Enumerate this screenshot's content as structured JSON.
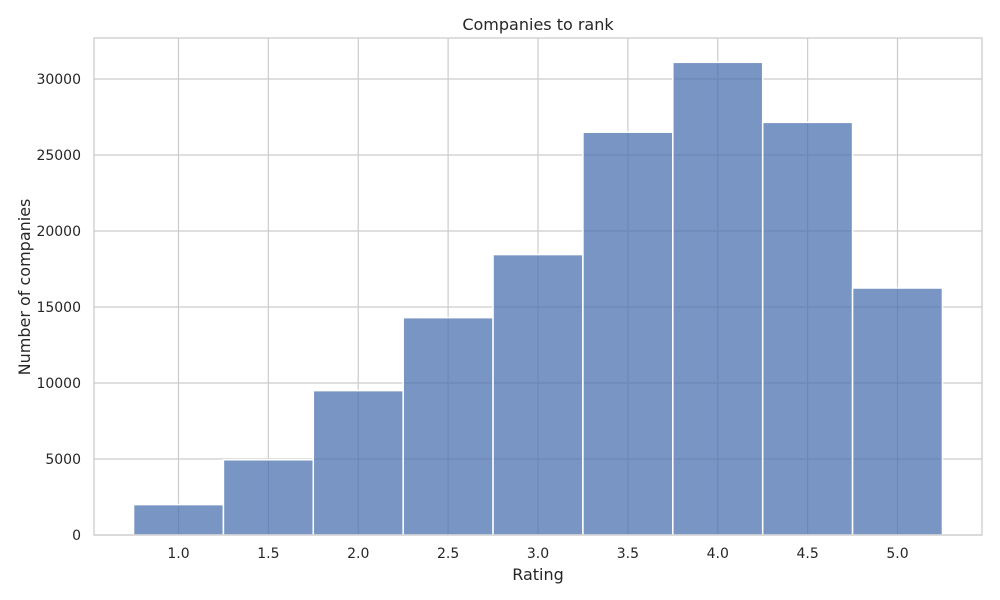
{
  "chart_data": {
    "type": "bar",
    "title": "Companies to rank",
    "xlabel": "Rating",
    "ylabel": "Number of companies",
    "x_ticks": [
      1.0,
      1.5,
      2.0,
      2.5,
      3.0,
      3.5,
      4.0,
      4.5,
      5.0
    ],
    "x_tick_labels": [
      "1.0",
      "1.5",
      "2.0",
      "2.5",
      "3.0",
      "3.5",
      "4.0",
      "4.5",
      "5.0"
    ],
    "y_ticks": [
      0,
      5000,
      10000,
      15000,
      20000,
      25000,
      30000
    ],
    "y_tick_labels": [
      "0",
      "5000",
      "10000",
      "15000",
      "20000",
      "25000",
      "30000"
    ],
    "xlim": [
      0.53,
      5.47
    ],
    "ylim": [
      0,
      32700
    ],
    "bins": [
      {
        "start": 0.75,
        "end": 1.25,
        "value": 2000
      },
      {
        "start": 1.25,
        "end": 1.75,
        "value": 4950
      },
      {
        "start": 1.75,
        "end": 2.25,
        "value": 9500
      },
      {
        "start": 2.25,
        "end": 2.75,
        "value": 14300
      },
      {
        "start": 2.75,
        "end": 3.25,
        "value": 18450
      },
      {
        "start": 3.25,
        "end": 3.75,
        "value": 26500
      },
      {
        "start": 3.75,
        "end": 4.25,
        "value": 31100
      },
      {
        "start": 4.25,
        "end": 4.75,
        "value": 27150
      },
      {
        "start": 4.75,
        "end": 5.25,
        "value": 16250
      }
    ],
    "bar_color": "#4c72b0",
    "grid": true
  }
}
